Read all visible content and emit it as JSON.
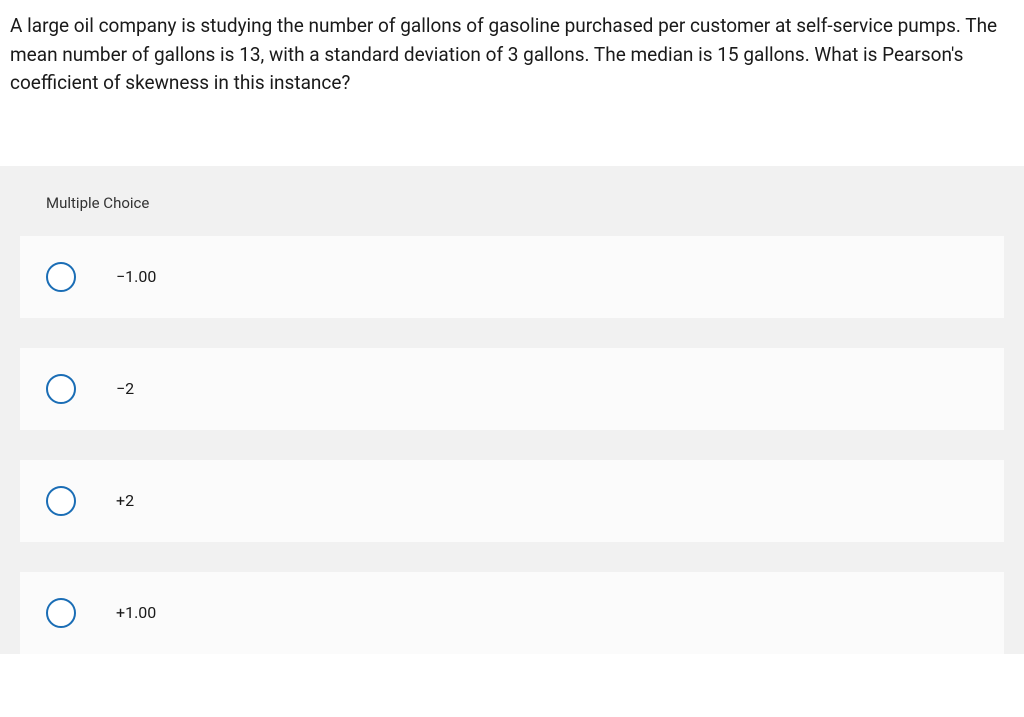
{
  "question": {
    "text": "A large oil company is studying the number of gallons of gasoline purchased per customer at self-service pumps. The mean number of gallons is 13, with a standard deviation of 3 gallons. The median is 15 gallons. What is Pearson's coefficient of skewness in this instance?"
  },
  "section_header": "Multiple Choice",
  "options": [
    {
      "label": "−1.00"
    },
    {
      "label": "−2"
    },
    {
      "label": "+2"
    },
    {
      "label": "+1.00"
    }
  ],
  "colors": {
    "background": "#ffffff",
    "section_bg": "#f1f1f1",
    "option_bg": "#fbfbfb",
    "radio_border": "#1a6db5",
    "text": "#1a1a1a"
  },
  "typography": {
    "question_fontsize": 19,
    "header_fontsize": 15,
    "option_fontsize": 16
  }
}
